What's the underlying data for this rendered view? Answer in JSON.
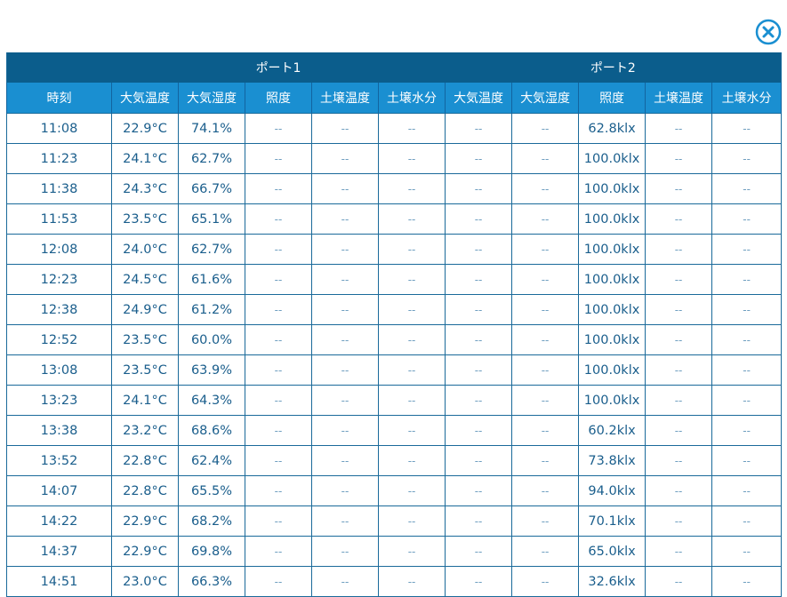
{
  "close_icon": "close-circle-icon",
  "colors": {
    "group_header_bg": "#0b5d8c",
    "column_header_bg": "#1a8fd1",
    "cell_text": "#1a5e8c",
    "accent": "#1a8fd1"
  },
  "table": {
    "groups": [
      {
        "label": ""
      },
      {
        "label": "ポート1"
      },
      {
        "label": "ポート2"
      }
    ],
    "columns": [
      "時刻",
      "大気温度",
      "大気湿度",
      "照度",
      "土壌温度",
      "土壌水分",
      "大気温度",
      "大気湿度",
      "照度",
      "土壌温度",
      "土壌水分"
    ],
    "rows": [
      [
        "11:08",
        "22.9°C",
        "74.1%",
        "--",
        "--",
        "--",
        "--",
        "--",
        "62.8klx",
        "--",
        "--"
      ],
      [
        "11:23",
        "24.1°C",
        "62.7%",
        "--",
        "--",
        "--",
        "--",
        "--",
        "100.0klx",
        "--",
        "--"
      ],
      [
        "11:38",
        "24.3°C",
        "66.7%",
        "--",
        "--",
        "--",
        "--",
        "--",
        "100.0klx",
        "--",
        "--"
      ],
      [
        "11:53",
        "23.5°C",
        "65.1%",
        "--",
        "--",
        "--",
        "--",
        "--",
        "100.0klx",
        "--",
        "--"
      ],
      [
        "12:08",
        "24.0°C",
        "62.7%",
        "--",
        "--",
        "--",
        "--",
        "--",
        "100.0klx",
        "--",
        "--"
      ],
      [
        "12:23",
        "24.5°C",
        "61.6%",
        "--",
        "--",
        "--",
        "--",
        "--",
        "100.0klx",
        "--",
        "--"
      ],
      [
        "12:38",
        "24.9°C",
        "61.2%",
        "--",
        "--",
        "--",
        "--",
        "--",
        "100.0klx",
        "--",
        "--"
      ],
      [
        "12:52",
        "23.5°C",
        "60.0%",
        "--",
        "--",
        "--",
        "--",
        "--",
        "100.0klx",
        "--",
        "--"
      ],
      [
        "13:08",
        "23.5°C",
        "63.9%",
        "--",
        "--",
        "--",
        "--",
        "--",
        "100.0klx",
        "--",
        "--"
      ],
      [
        "13:23",
        "24.1°C",
        "64.3%",
        "--",
        "--",
        "--",
        "--",
        "--",
        "100.0klx",
        "--",
        "--"
      ],
      [
        "13:38",
        "23.2°C",
        "68.6%",
        "--",
        "--",
        "--",
        "--",
        "--",
        "60.2klx",
        "--",
        "--"
      ],
      [
        "13:52",
        "22.8°C",
        "62.4%",
        "--",
        "--",
        "--",
        "--",
        "--",
        "73.8klx",
        "--",
        "--"
      ],
      [
        "14:07",
        "22.8°C",
        "65.5%",
        "--",
        "--",
        "--",
        "--",
        "--",
        "94.0klx",
        "--",
        "--"
      ],
      [
        "14:22",
        "22.9°C",
        "68.2%",
        "--",
        "--",
        "--",
        "--",
        "--",
        "70.1klx",
        "--",
        "--"
      ],
      [
        "14:37",
        "22.9°C",
        "69.8%",
        "--",
        "--",
        "--",
        "--",
        "--",
        "65.0klx",
        "--",
        "--"
      ],
      [
        "14:51",
        "23.0°C",
        "66.3%",
        "--",
        "--",
        "--",
        "--",
        "--",
        "32.6klx",
        "--",
        "--"
      ]
    ]
  }
}
